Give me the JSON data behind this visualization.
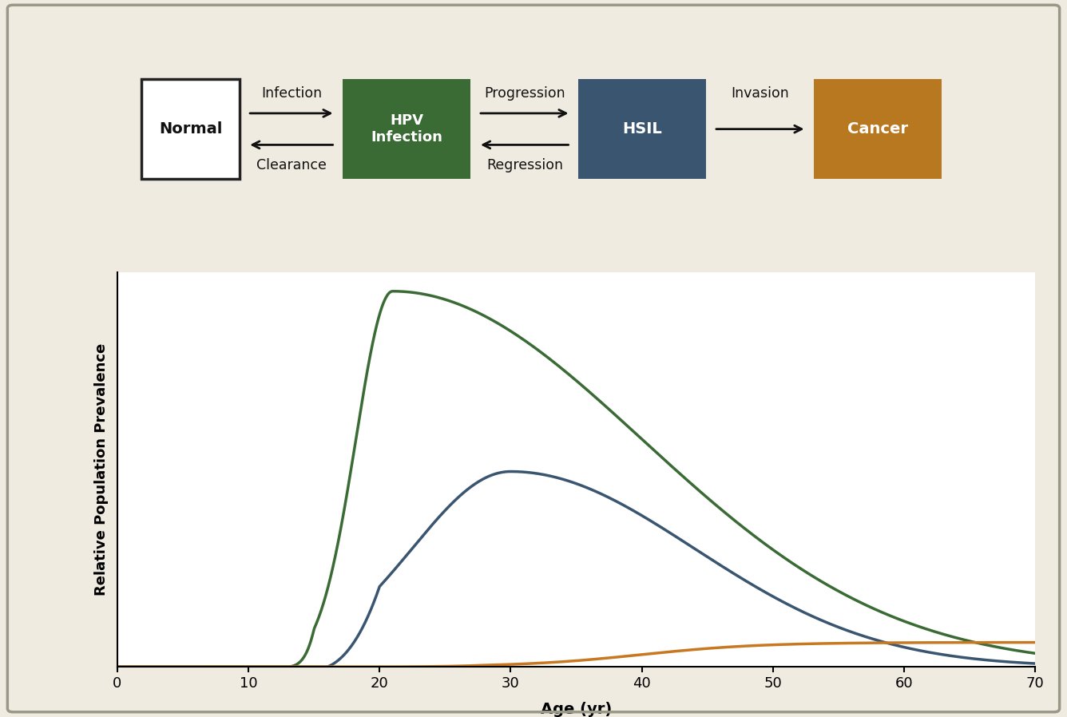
{
  "bg_color": "#f0ebe0",
  "plot_bg_color": "#ffffff",
  "border_color": "#999988",
  "box_normal_facecolor": "#ffffff",
  "box_normal_edgecolor": "#222222",
  "box_normal_text_color": "#111111",
  "box_hpv_color": "#3a6b35",
  "box_hpv_text": "#ffffff",
  "box_hsil_color": "#3a5570",
  "box_hsil_text": "#ffffff",
  "box_cancer_color": "#b87820",
  "box_cancer_text": "#ffffff",
  "arrow_color": "#111111",
  "curve_hpv_color": "#3a6b35",
  "curve_hsil_color": "#3a5570",
  "curve_cancer_color": "#c87820",
  "xlabel": "Age (yr)",
  "ylabel": "Relative Population Prevalence",
  "xticks": [
    0,
    10,
    20,
    30,
    40,
    50,
    60,
    70
  ],
  "label_infection": "Infection",
  "label_clearance": "Clearance",
  "label_progression": "Progression",
  "label_regression": "Regression",
  "label_invasion": "Invasion",
  "label_normal": "Normal",
  "label_hpv": "HPV\nInfection",
  "label_hsil": "HSIL",
  "label_cancer": "Cancer"
}
